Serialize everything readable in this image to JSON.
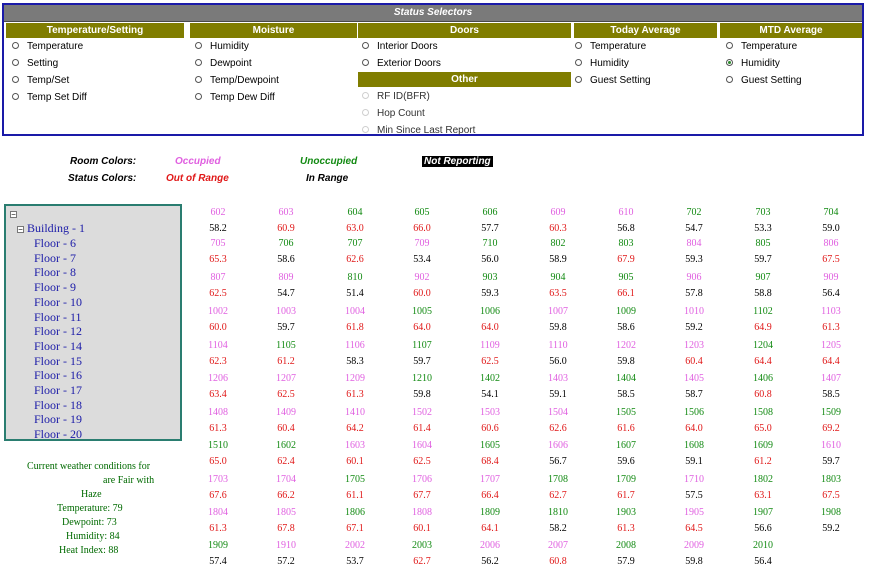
{
  "selector_panel": {
    "title": "Status Selectors",
    "columns": [
      {
        "header": "Temperature/Setting",
        "items": [
          "Temperature",
          "Setting",
          "Temp/Set",
          "Temp Set Diff"
        ]
      },
      {
        "header": "Moisture",
        "items": [
          "Humidity",
          "Dewpoint",
          "Temp/Dewpoint",
          "Temp Dew Diff"
        ]
      },
      {
        "header": "Doors",
        "items": [
          "Interior Doors",
          "Exterior Doors"
        ]
      },
      {
        "header": "Today Average",
        "items": [
          "Temperature",
          "Humidity",
          "Guest Setting"
        ]
      },
      {
        "header": "MTD Average",
        "items": [
          "Temperature",
          "Humidity",
          "Guest Setting"
        ],
        "selected": "Humidity"
      }
    ],
    "other": {
      "header": "Other",
      "items": [
        "RF ID(BFR)",
        "Hop Count",
        "Min Since Last Report"
      ]
    }
  },
  "legend": {
    "room_colors_label": "Room Colors:",
    "status_colors_label": "Status Colors:",
    "occupied": "Occupied",
    "unoccupied": "Unoccupied",
    "not_reporting": "Not Reporting",
    "out_of_range": "Out of Range",
    "in_range": "In Range"
  },
  "colors": {
    "occupied": "#e060e0",
    "unoccupied": "#128a12",
    "out_of_range": "#e01818",
    "in_range": "#000000",
    "header_olive": "#807d00",
    "panel_border": "#1a1aa8",
    "tree_border": "#2a7d70"
  },
  "tree": {
    "root_toggle": "⊟",
    "building": "Building - 1",
    "floors": [
      "Floor - 6",
      "Floor - 7",
      "Floor - 8",
      "Floor - 9",
      "Floor - 10",
      "Floor - 11",
      "Floor - 12",
      "Floor - 14",
      "Floor - 15",
      "Floor - 16",
      "Floor - 17",
      "Floor - 18",
      "Floor - 19",
      "Floor - 20"
    ]
  },
  "weather": [
    "Current weather conditions for",
    "are Fair with",
    "Haze",
    "Temperature: 79",
    "Dewpoint: 73",
    "Humidity: 84",
    "Heat Index: 88"
  ],
  "rooms": [
    [
      [
        "602",
        "o",
        "58.2",
        "i"
      ],
      [
        "603",
        "o",
        "60.9",
        "r"
      ],
      [
        "604",
        "u",
        "63.0",
        "r"
      ],
      [
        "605",
        "u",
        "66.0",
        "r"
      ],
      [
        "606",
        "u",
        "57.7",
        "i"
      ],
      [
        "609",
        "o",
        "60.3",
        "r"
      ],
      [
        "610",
        "o",
        "56.8",
        "i"
      ],
      [
        "702",
        "u",
        "54.7",
        "i"
      ],
      [
        "703",
        "u",
        "53.3",
        "i"
      ],
      [
        "704",
        "u",
        "59.0",
        "i"
      ]
    ],
    [
      [
        "705",
        "o",
        "65.3",
        "r"
      ],
      [
        "706",
        "u",
        "58.6",
        "i"
      ],
      [
        "707",
        "u",
        "62.6",
        "r"
      ],
      [
        "709",
        "o",
        "53.4",
        "i"
      ],
      [
        "710",
        "u",
        "56.0",
        "i"
      ],
      [
        "802",
        "u",
        "58.9",
        "i"
      ],
      [
        "803",
        "u",
        "67.9",
        "r"
      ],
      [
        "804",
        "o",
        "59.3",
        "i"
      ],
      [
        "805",
        "u",
        "59.7",
        "i"
      ],
      [
        "806",
        "o",
        "67.5",
        "r"
      ]
    ],
    [
      [
        "807",
        "o",
        "62.5",
        "r"
      ],
      [
        "809",
        "o",
        "54.7",
        "i"
      ],
      [
        "810",
        "u",
        "51.4",
        "i"
      ],
      [
        "902",
        "o",
        "60.0",
        "r"
      ],
      [
        "903",
        "u",
        "59.3",
        "i"
      ],
      [
        "904",
        "u",
        "63.5",
        "r"
      ],
      [
        "905",
        "u",
        "66.1",
        "r"
      ],
      [
        "906",
        "o",
        "57.8",
        "i"
      ],
      [
        "907",
        "u",
        "58.8",
        "i"
      ],
      [
        "909",
        "o",
        "56.4",
        "i"
      ]
    ],
    [
      [
        "1002",
        "o",
        "60.0",
        "r"
      ],
      [
        "1003",
        "o",
        "59.7",
        "i"
      ],
      [
        "1004",
        "o",
        "61.8",
        "r"
      ],
      [
        "1005",
        "u",
        "64.0",
        "r"
      ],
      [
        "1006",
        "u",
        "64.0",
        "r"
      ],
      [
        "1007",
        "o",
        "59.8",
        "i"
      ],
      [
        "1009",
        "u",
        "58.6",
        "i"
      ],
      [
        "1010",
        "o",
        "59.2",
        "i"
      ],
      [
        "1102",
        "u",
        "64.9",
        "r"
      ],
      [
        "1103",
        "o",
        "61.3",
        "r"
      ]
    ],
    [
      [
        "1104",
        "o",
        "62.3",
        "r"
      ],
      [
        "1105",
        "u",
        "61.2",
        "r"
      ],
      [
        "1106",
        "o",
        "58.3",
        "i"
      ],
      [
        "1107",
        "u",
        "59.7",
        "i"
      ],
      [
        "1109",
        "o",
        "62.5",
        "r"
      ],
      [
        "1110",
        "o",
        "56.0",
        "i"
      ],
      [
        "1202",
        "o",
        "59.8",
        "i"
      ],
      [
        "1203",
        "o",
        "60.4",
        "r"
      ],
      [
        "1204",
        "u",
        "64.4",
        "r"
      ],
      [
        "1205",
        "o",
        "64.4",
        "r"
      ]
    ],
    [
      [
        "1206",
        "o",
        "63.4",
        "r"
      ],
      [
        "1207",
        "o",
        "62.5",
        "r"
      ],
      [
        "1209",
        "o",
        "61.3",
        "r"
      ],
      [
        "1210",
        "u",
        "59.8",
        "i"
      ],
      [
        "1402",
        "u",
        "54.1",
        "i"
      ],
      [
        "1403",
        "o",
        "59.1",
        "i"
      ],
      [
        "1404",
        "u",
        "58.5",
        "i"
      ],
      [
        "1405",
        "o",
        "58.7",
        "i"
      ],
      [
        "1406",
        "u",
        "60.8",
        "r"
      ],
      [
        "1407",
        "o",
        "58.5",
        "i"
      ]
    ],
    [
      [
        "1408",
        "o",
        "61.3",
        "r"
      ],
      [
        "1409",
        "o",
        "60.4",
        "r"
      ],
      [
        "1410",
        "o",
        "64.2",
        "r"
      ],
      [
        "1502",
        "o",
        "61.4",
        "r"
      ],
      [
        "1503",
        "o",
        "60.6",
        "r"
      ],
      [
        "1504",
        "o",
        "62.6",
        "r"
      ],
      [
        "1505",
        "u",
        "61.6",
        "r"
      ],
      [
        "1506",
        "u",
        "64.0",
        "r"
      ],
      [
        "1508",
        "u",
        "65.0",
        "r"
      ],
      [
        "1509",
        "u",
        "69.2",
        "r"
      ]
    ],
    [
      [
        "1510",
        "u",
        "65.0",
        "r"
      ],
      [
        "1602",
        "u",
        "62.4",
        "r"
      ],
      [
        "1603",
        "o",
        "60.1",
        "r"
      ],
      [
        "1604",
        "o",
        "62.5",
        "r"
      ],
      [
        "1605",
        "u",
        "68.4",
        "r"
      ],
      [
        "1606",
        "o",
        "56.7",
        "i"
      ],
      [
        "1607",
        "u",
        "59.6",
        "i"
      ],
      [
        "1608",
        "u",
        "59.1",
        "i"
      ],
      [
        "1609",
        "u",
        "61.2",
        "r"
      ],
      [
        "1610",
        "o",
        "59.7",
        "i"
      ]
    ],
    [
      [
        "1703",
        "o",
        "67.6",
        "r"
      ],
      [
        "1704",
        "o",
        "66.2",
        "r"
      ],
      [
        "1705",
        "u",
        "61.1",
        "r"
      ],
      [
        "1706",
        "o",
        "67.7",
        "r"
      ],
      [
        "1707",
        "o",
        "66.4",
        "r"
      ],
      [
        "1708",
        "u",
        "62.7",
        "r"
      ],
      [
        "1709",
        "u",
        "61.7",
        "r"
      ],
      [
        "1710",
        "o",
        "57.5",
        "i"
      ],
      [
        "1802",
        "u",
        "63.1",
        "r"
      ],
      [
        "1803",
        "u",
        "67.5",
        "r"
      ]
    ],
    [
      [
        "1804",
        "o",
        "61.3",
        "r"
      ],
      [
        "1805",
        "o",
        "67.8",
        "r"
      ],
      [
        "1806",
        "u",
        "67.1",
        "r"
      ],
      [
        "1808",
        "o",
        "60.1",
        "r"
      ],
      [
        "1809",
        "u",
        "64.1",
        "r"
      ],
      [
        "1810",
        "u",
        "58.2",
        "i"
      ],
      [
        "1903",
        "u",
        "61.3",
        "r"
      ],
      [
        "1905",
        "o",
        "64.5",
        "r"
      ],
      [
        "1907",
        "u",
        "56.6",
        "i"
      ],
      [
        "1908",
        "u",
        "59.2",
        "i"
      ]
    ],
    [
      [
        "1909",
        "u",
        "57.4",
        "i"
      ],
      [
        "1910",
        "o",
        "57.2",
        "i"
      ],
      [
        "2002",
        "o",
        "53.7",
        "i"
      ],
      [
        "2003",
        "u",
        "62.7",
        "r"
      ],
      [
        "2006",
        "o",
        "56.2",
        "i"
      ],
      [
        "2007",
        "o",
        "60.8",
        "r"
      ],
      [
        "2008",
        "u",
        "57.9",
        "i"
      ],
      [
        "2009",
        "o",
        "59.8",
        "i"
      ],
      [
        "2010",
        "u",
        "56.4",
        "i"
      ]
    ]
  ]
}
